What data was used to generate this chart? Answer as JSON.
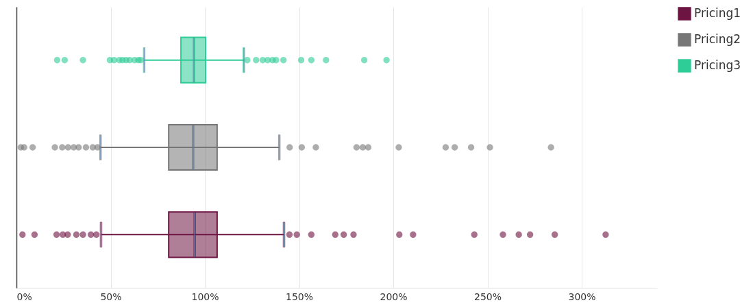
{
  "chart_data": {
    "type": "box",
    "orientation": "horizontal",
    "categories": [
      null
    ],
    "series": [
      {
        "name": "Pricing1",
        "color": "#6e1442",
        "boxes": [
          {
            "low": 44.9,
            "q1": 80.8,
            "median": 94.6,
            "q3": 106.5,
            "high": 142.0,
            "outliers": [
              3.2,
              9.6,
              21.3,
              24.6,
              27.2,
              31.8,
              35.3,
              39.5,
              42.4,
              144.9,
              148.8,
              156.5,
              169.2,
              173.7,
              178.9,
              203.2,
              210.5,
              243,
              258.2,
              266.6,
              272.6,
              285.7,
              312.7
            ]
          }
        ]
      },
      {
        "name": "Pricing2",
        "color": "#777777",
        "boxes": [
          {
            "low": 44.6,
            "q1": 80.8,
            "median": 93.8,
            "q3": 106.5,
            "high": 139.5,
            "outliers": [
              2.3,
              4.1,
              8.6,
              20.4,
              24.3,
              27.4,
              30.4,
              33,
              36.9,
              40.5,
              43,
              145,
              151.4,
              158.9,
              180.5,
              183.8,
              186.7,
              202.9,
              227.8,
              232.6,
              241.3,
              251.3,
              283.7
            ]
          }
        ]
      },
      {
        "name": "Pricing3",
        "color": "#2ecc96",
        "boxes": [
          {
            "low": 67.8,
            "q1": 87.3,
            "median": 94.2,
            "q3": 100.4,
            "high": 120.7,
            "outliers": [
              21.6,
              25.6,
              35.3,
              49.6,
              51.8,
              54.6,
              56.3,
              58.2,
              60.1,
              62.7,
              64.7,
              66,
              122.5,
              127.2,
              130.7,
              133.3,
              135.9,
              137.8,
              141.7,
              151.1,
              156.5,
              164.3,
              184.6,
              196.4
            ]
          }
        ]
      }
    ],
    "xlim": [
      0,
      340
    ],
    "xticks": [
      {
        "value": 0,
        "label": "0%"
      },
      {
        "value": 50,
        "label": "50%"
      },
      {
        "value": 100,
        "label": "100%"
      },
      {
        "value": 150,
        "label": "150%"
      },
      {
        "value": 200,
        "label": "200%"
      },
      {
        "value": 250,
        "label": "250%"
      },
      {
        "value": 300,
        "label": "300%"
      }
    ],
    "grid": "x",
    "legend": "right",
    "tick_labels": "x"
  }
}
